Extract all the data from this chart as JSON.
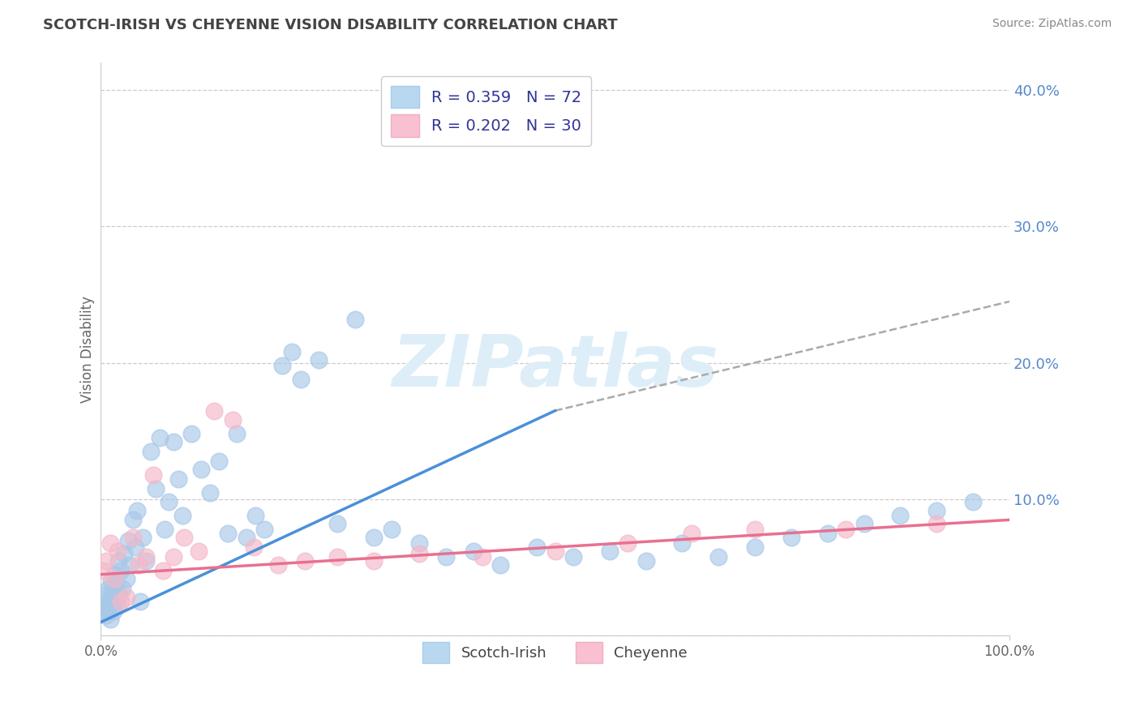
{
  "title": "SCOTCH-IRISH VS CHEYENNE VISION DISABILITY CORRELATION CHART",
  "source": "Source: ZipAtlas.com",
  "ylabel": "Vision Disability",
  "xlim": [
    0,
    1.0
  ],
  "ylim": [
    0,
    0.42
  ],
  "r_scotch": 0.359,
  "n_scotch": 72,
  "r_cheyenne": 0.202,
  "n_cheyenne": 30,
  "blue_scatter": "#a8c8e8",
  "pink_scatter": "#f4b8c8",
  "blue_line": "#4a90d9",
  "pink_line": "#e87090",
  "gray_dash": "#aaaaaa",
  "title_color": "#444444",
  "source_color": "#888888",
  "grid_color": "#cccccc",
  "watermark_color": "#ddeef8",
  "right_tick_color": "#5588cc",
  "scotch_x": [
    0.003,
    0.004,
    0.005,
    0.006,
    0.007,
    0.008,
    0.009,
    0.01,
    0.011,
    0.012,
    0.013,
    0.014,
    0.015,
    0.016,
    0.017,
    0.018,
    0.019,
    0.02,
    0.022,
    0.024,
    0.026,
    0.028,
    0.03,
    0.032,
    0.035,
    0.038,
    0.04,
    0.043,
    0.046,
    0.05,
    0.055,
    0.06,
    0.065,
    0.07,
    0.075,
    0.08,
    0.085,
    0.09,
    0.1,
    0.11,
    0.12,
    0.13,
    0.14,
    0.15,
    0.16,
    0.17,
    0.18,
    0.2,
    0.21,
    0.22,
    0.24,
    0.26,
    0.28,
    0.3,
    0.32,
    0.35,
    0.38,
    0.41,
    0.44,
    0.48,
    0.52,
    0.56,
    0.6,
    0.64,
    0.68,
    0.72,
    0.76,
    0.8,
    0.84,
    0.88,
    0.92,
    0.96
  ],
  "scotch_y": [
    0.022,
    0.018,
    0.03,
    0.015,
    0.025,
    0.02,
    0.035,
    0.012,
    0.04,
    0.028,
    0.032,
    0.018,
    0.045,
    0.025,
    0.038,
    0.022,
    0.055,
    0.03,
    0.048,
    0.035,
    0.06,
    0.042,
    0.07,
    0.052,
    0.085,
    0.065,
    0.092,
    0.025,
    0.072,
    0.055,
    0.135,
    0.108,
    0.145,
    0.078,
    0.098,
    0.142,
    0.115,
    0.088,
    0.148,
    0.122,
    0.105,
    0.128,
    0.075,
    0.148,
    0.072,
    0.088,
    0.078,
    0.198,
    0.208,
    0.188,
    0.202,
    0.082,
    0.232,
    0.072,
    0.078,
    0.068,
    0.058,
    0.062,
    0.052,
    0.065,
    0.058,
    0.062,
    0.055,
    0.068,
    0.058,
    0.065,
    0.072,
    0.075,
    0.082,
    0.088,
    0.092,
    0.098
  ],
  "cheyenne_x": [
    0.003,
    0.006,
    0.01,
    0.015,
    0.018,
    0.022,
    0.028,
    0.035,
    0.042,
    0.05,
    0.058,
    0.068,
    0.08,
    0.092,
    0.108,
    0.125,
    0.145,
    0.168,
    0.195,
    0.225,
    0.26,
    0.3,
    0.35,
    0.42,
    0.5,
    0.58,
    0.65,
    0.72,
    0.82,
    0.92
  ],
  "cheyenne_y": [
    0.048,
    0.055,
    0.068,
    0.042,
    0.062,
    0.025,
    0.028,
    0.072,
    0.052,
    0.058,
    0.118,
    0.048,
    0.058,
    0.072,
    0.062,
    0.165,
    0.158,
    0.065,
    0.052,
    0.055,
    0.058,
    0.055,
    0.06,
    0.058,
    0.062,
    0.068,
    0.075,
    0.078,
    0.078,
    0.082
  ],
  "scotch_line_x": [
    0.0,
    0.5
  ],
  "scotch_line_y_start": 0.01,
  "scotch_line_y_end": 0.165,
  "dash_line_x": [
    0.5,
    1.0
  ],
  "dash_line_y_start": 0.165,
  "dash_line_y_end": 0.245,
  "cheyenne_line_x": [
    0.0,
    1.0
  ],
  "cheyenne_line_y_start": 0.045,
  "cheyenne_line_y_end": 0.085
}
